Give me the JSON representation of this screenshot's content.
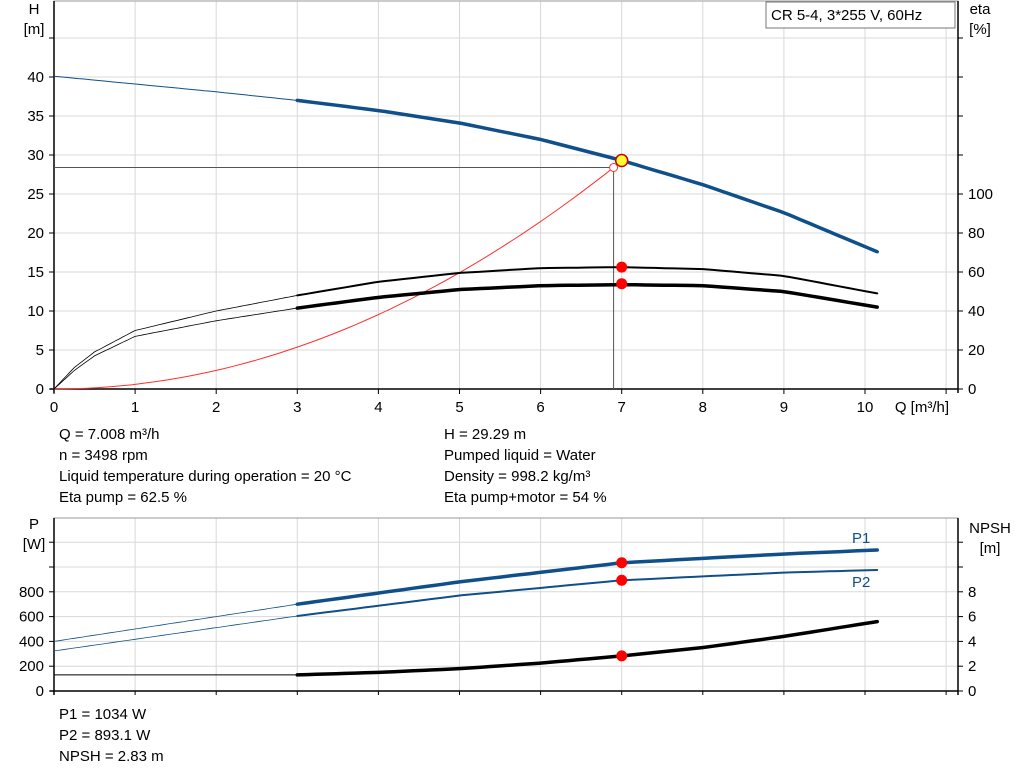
{
  "chart_data": [
    {
      "type": "line",
      "title": "CR 5-4, 3*255 V, 60Hz",
      "xlabel": "Q [m³/h]",
      "ylabel": "H\n[m]",
      "ylabel_right": "eta\n[%]",
      "xlim": [
        0,
        11
      ],
      "ylim": [
        0,
        50
      ],
      "ylim_right": [
        0,
        255
      ],
      "x_ticks": [
        0,
        1,
        2,
        3,
        4,
        5,
        6,
        7,
        8,
        9,
        10
      ],
      "y_ticks": [
        0,
        5,
        10,
        15,
        20,
        25,
        30,
        35,
        40
      ],
      "y_ticks_right": [
        0,
        20,
        40,
        60,
        80,
        100
      ],
      "grid": true,
      "operating_range_start": 3,
      "series": [
        {
          "axis": "left",
          "color": "#0f4f8a",
          "x": [
            0,
            1,
            2,
            3,
            4,
            5,
            6,
            7,
            8,
            9,
            10.15
          ],
          "y": [
            40.1,
            39.1,
            38.1,
            37.0,
            35.7,
            34.1,
            32.0,
            29.3,
            26.2,
            22.6,
            17.6
          ]
        },
        {
          "axis": "right",
          "color": "#000000",
          "x": [
            0,
            0.25,
            0.5,
            1,
            2,
            3,
            4,
            5,
            6,
            7,
            8,
            9,
            10.15
          ],
          "y": [
            0,
            11,
            19,
            30,
            40,
            48,
            55,
            59.5,
            62,
            62.5,
            61.5,
            58,
            49
          ]
        },
        {
          "axis": "right",
          "color": "#000000",
          "x": [
            0,
            0.25,
            0.5,
            1,
            2,
            3,
            4,
            5,
            6,
            7,
            8,
            9,
            10.15
          ],
          "y": [
            0,
            9.5,
            17,
            27,
            35,
            41.5,
            47,
            51,
            53,
            53.5,
            53,
            50,
            42
          ]
        }
      ],
      "system_curve": {
        "color": "#ff3030",
        "x_end": 6.9,
        "y_end": 28.4
      },
      "duty_point": {
        "Q": 7.0,
        "H": 29.29,
        "eta_pump": 62.5,
        "eta_total": 54,
        "required_H": 28.4,
        "required_Q": 6.9
      }
    },
    {
      "type": "line",
      "ylabel": "P\n[W]",
      "ylabel_right": "NPSH\n[m]",
      "xlim": [
        0,
        11
      ],
      "ylim": [
        0,
        1400
      ],
      "ylim_right": [
        0,
        14
      ],
      "y_ticks": [
        0,
        200,
        400,
        600,
        800
      ],
      "y_ticks_right": [
        0,
        2,
        4,
        6,
        8
      ],
      "grid": true,
      "operating_range_start": 3,
      "series": [
        {
          "name": "P1",
          "axis": "left",
          "color": "#0f4f8a",
          "x": [
            0,
            3,
            5,
            7,
            9,
            10.15
          ],
          "y": [
            400,
            700,
            880,
            1034,
            1105,
            1137
          ]
        },
        {
          "name": "P2",
          "axis": "left",
          "color": "#0f4f8a",
          "x": [
            0,
            3,
            5,
            7,
            9,
            10.15
          ],
          "y": [
            323,
            605,
            770,
            893,
            955,
            976
          ]
        },
        {
          "axis": "right",
          "color": "#000000",
          "x": [
            0,
            3,
            4,
            5,
            6,
            7,
            8,
            9,
            10.15
          ],
          "y": [
            1.3,
            1.3,
            1.5,
            1.8,
            2.25,
            2.83,
            3.5,
            4.4,
            5.6
          ]
        }
      ],
      "duty_point": {
        "Q": 7.0,
        "P1": 1034,
        "P2": 893.1,
        "NPSH": 2.83
      }
    }
  ],
  "info_top_left": [
    "Q = 7.008 m³/h",
    "n = 3498 rpm",
    "Liquid temperature during operation = 20 °C",
    "Eta pump = 62.5 %"
  ],
  "info_top_right": [
    "H = 29.29 m",
    "Pumped liquid = Water",
    "Density = 998.2 kg/m³",
    "Eta pump+motor = 54 %"
  ],
  "info_bottom": [
    "P1 = 1034 W",
    "P2 = 893.1 W",
    "NPSH = 2.83 m"
  ]
}
